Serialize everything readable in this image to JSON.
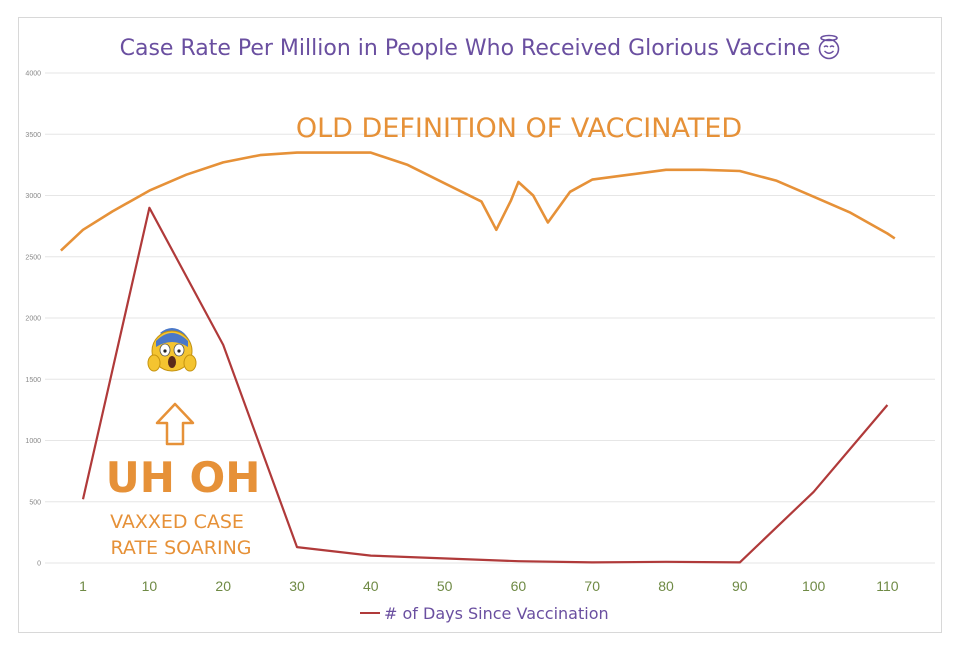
{
  "chart_data": {
    "type": "line",
    "title": "Case Rate Per Million in People Who Received Glorious Vaccine",
    "title_emoji": "smiling-face-with-halo",
    "ylim": [
      0,
      4000
    ],
    "yticks": [
      0,
      500,
      1000,
      1500,
      2000,
      2500,
      3000,
      3500,
      4000
    ],
    "xticks": [
      1,
      10,
      20,
      30,
      40,
      50,
      60,
      70,
      80,
      90,
      100,
      110
    ],
    "grid": true,
    "legend_position": "bottom",
    "series": [
      {
        "name": "# of Days Since Vaccination",
        "color": "#b03a3a",
        "points": [
          [
            1,
            520
          ],
          [
            10,
            2900
          ],
          [
            20,
            1780
          ],
          [
            30,
            130
          ],
          [
            40,
            60
          ],
          [
            60,
            15
          ],
          [
            70,
            5
          ],
          [
            80,
            10
          ],
          [
            90,
            5
          ],
          [
            100,
            580
          ],
          [
            110,
            1290
          ]
        ]
      },
      {
        "color": "#e69138",
        "points": [
          [
            -2,
            2550
          ],
          [
            1,
            2720
          ],
          [
            5,
            2870
          ],
          [
            10,
            3040
          ],
          [
            15,
            3170
          ],
          [
            20,
            3270
          ],
          [
            25,
            3330
          ],
          [
            30,
            3350
          ],
          [
            40,
            3350
          ],
          [
            45,
            3250
          ],
          [
            50,
            3100
          ],
          [
            55,
            2950
          ],
          [
            57,
            2720
          ],
          [
            59,
            2960
          ],
          [
            60,
            3110
          ],
          [
            62,
            3000
          ],
          [
            64,
            2780
          ],
          [
            67,
            3030
          ],
          [
            70,
            3130
          ],
          [
            75,
            3170
          ],
          [
            80,
            3210
          ],
          [
            85,
            3210
          ],
          [
            90,
            3200
          ],
          [
            95,
            3120
          ],
          [
            100,
            2990
          ],
          [
            105,
            2860
          ],
          [
            110,
            2690
          ],
          [
            111,
            2650
          ]
        ]
      }
    ],
    "annotations": {
      "old_definition": "OLD DEFINITION OF VACCINATED",
      "uh_oh": "UH OH",
      "soaring_line1": "VAXXED CASE",
      "soaring_line2": "RATE SOARING",
      "arrow_icon": "up-arrow-outline-icon",
      "scream_icon": "face-screaming-in-fear-icon"
    }
  }
}
